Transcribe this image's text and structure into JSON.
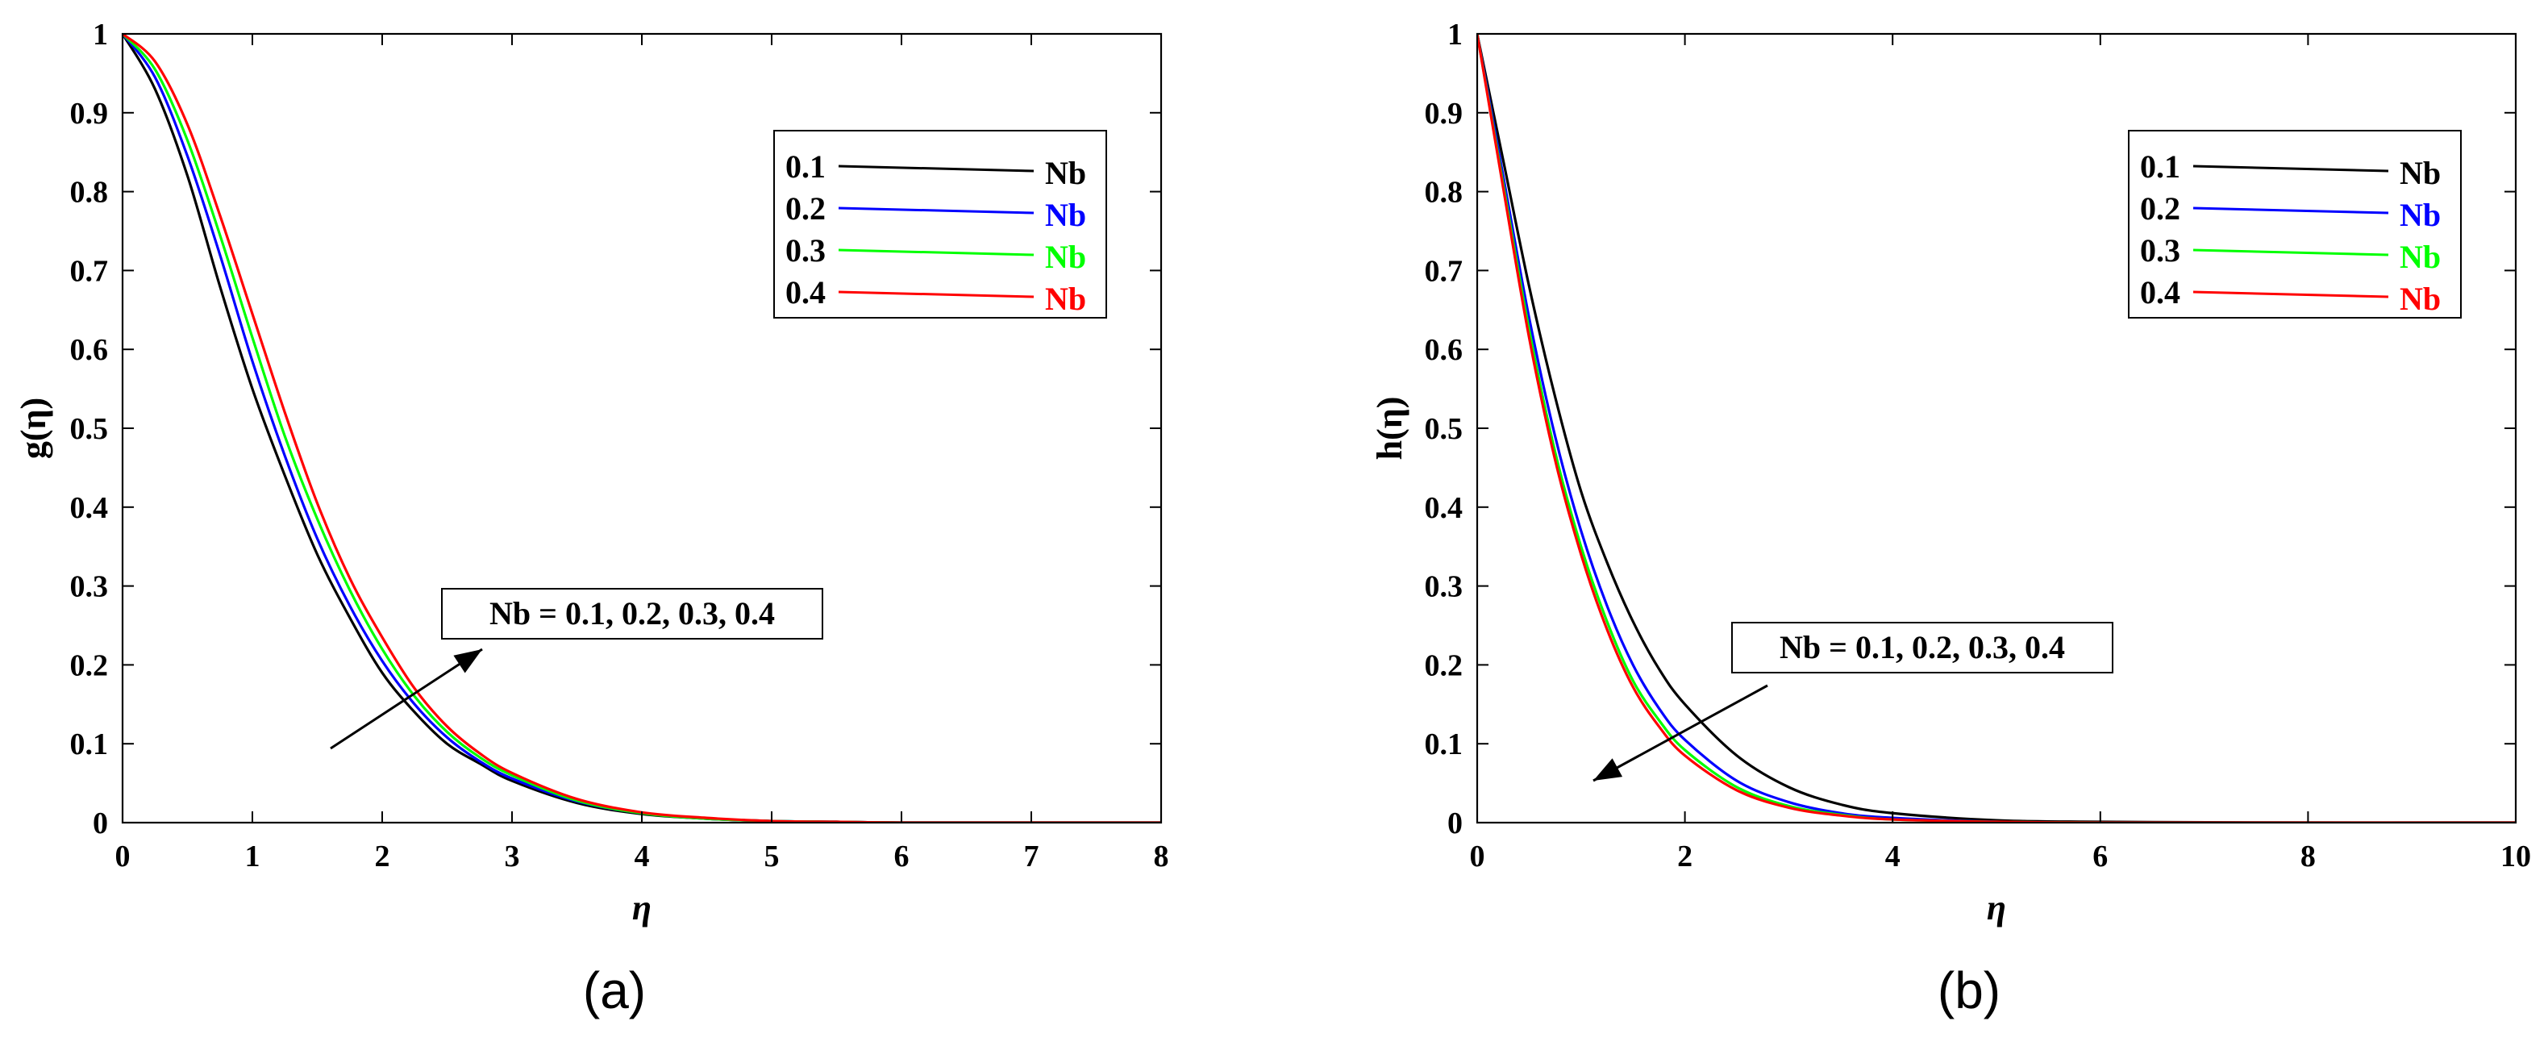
{
  "chart_data": [
    {
      "type": "line",
      "panel_label": "(a)",
      "xlabel": "η",
      "ylabel": "g(η)",
      "xlim": [
        0,
        8
      ],
      "ylim": [
        0,
        1
      ],
      "xticks": [
        "0",
        "1",
        "2",
        "3",
        "4",
        "5",
        "6",
        "7",
        "8"
      ],
      "yticks": [
        "0",
        "0.1",
        "0.2",
        "0.3",
        "0.4",
        "0.5",
        "0.6",
        "0.7",
        "0.8",
        "0.9",
        "1"
      ],
      "legend_position": "top-right",
      "annotation": "Nb = 0.1, 0.2, 0.3, 0.4",
      "annotation_arrow": "increasing",
      "x": [
        0,
        0.25,
        0.5,
        0.75,
        1,
        1.25,
        1.5,
        1.75,
        2,
        2.25,
        2.5,
        2.75,
        3,
        3.5,
        4,
        4.5,
        5,
        5.5,
        6,
        7,
        8
      ],
      "series": [
        {
          "name": "0.1",
          "legend_value": "0.1",
          "legend_label": "Nb",
          "color": "#000000",
          "values": [
            1,
            0.93,
            0.82,
            0.68,
            0.55,
            0.44,
            0.34,
            0.26,
            0.19,
            0.14,
            0.1,
            0.075,
            0.053,
            0.025,
            0.011,
            0.005,
            0.002,
            0.001,
            0,
            0,
            0
          ]
        },
        {
          "name": "0.2",
          "legend_value": "0.2",
          "legend_label": "Nb",
          "color": "#0000ff",
          "values": [
            1,
            0.945,
            0.845,
            0.72,
            0.585,
            0.465,
            0.36,
            0.275,
            0.205,
            0.15,
            0.108,
            0.078,
            0.056,
            0.027,
            0.012,
            0.005,
            0.002,
            0.001,
            0,
            0,
            0
          ]
        },
        {
          "name": "0.3",
          "legend_value": "0.3",
          "legend_label": "Nb",
          "color": "#00ff00",
          "values": [
            1,
            0.955,
            0.865,
            0.745,
            0.615,
            0.49,
            0.385,
            0.295,
            0.22,
            0.16,
            0.115,
            0.083,
            0.06,
            0.028,
            0.012,
            0.005,
            0.002,
            0.001,
            0,
            0,
            0
          ]
        },
        {
          "name": "0.4",
          "legend_value": "0.4",
          "legend_label": "Nb",
          "color": "#ff0000",
          "values": [
            1,
            0.965,
            0.885,
            0.77,
            0.645,
            0.52,
            0.405,
            0.31,
            0.235,
            0.17,
            0.122,
            0.088,
            0.063,
            0.03,
            0.013,
            0.006,
            0.002,
            0.001,
            0,
            0,
            0
          ]
        }
      ]
    },
    {
      "type": "line",
      "panel_label": "(b)",
      "xlabel": "η",
      "ylabel": "h(η)",
      "xlim": [
        0,
        10
      ],
      "ylim": [
        0,
        1
      ],
      "xticks": [
        "0",
        "2",
        "4",
        "6",
        "8",
        "10"
      ],
      "yticks": [
        "0",
        "0.1",
        "0.2",
        "0.3",
        "0.4",
        "0.5",
        "0.6",
        "0.7",
        "0.8",
        "0.9",
        "1"
      ],
      "legend_position": "top-right",
      "annotation": "Nb = 0.1, 0.2, 0.3, 0.4",
      "annotation_arrow": "decreasing",
      "x": [
        0,
        0.25,
        0.5,
        0.75,
        1,
        1.25,
        1.5,
        1.75,
        2,
        2.5,
        3,
        3.5,
        4,
        5,
        6,
        8,
        10
      ],
      "series": [
        {
          "name": "0.1",
          "legend_value": "0.1",
          "legend_label": "Nb",
          "color": "#000000",
          "values": [
            1,
            0.84,
            0.68,
            0.54,
            0.42,
            0.33,
            0.255,
            0.195,
            0.15,
            0.085,
            0.045,
            0.023,
            0.012,
            0.003,
            0.001,
            0,
            0
          ]
        },
        {
          "name": "0.2",
          "legend_value": "0.2",
          "legend_label": "Nb",
          "color": "#0000ff",
          "values": [
            1,
            0.82,
            0.64,
            0.49,
            0.37,
            0.275,
            0.2,
            0.145,
            0.105,
            0.053,
            0.026,
            0.012,
            0.006,
            0.001,
            0,
            0,
            0
          ]
        },
        {
          "name": "0.3",
          "legend_value": "0.3",
          "legend_label": "Nb",
          "color": "#00ff00",
          "values": [
            1,
            0.81,
            0.625,
            0.47,
            0.35,
            0.255,
            0.18,
            0.13,
            0.092,
            0.045,
            0.021,
            0.01,
            0.004,
            0.001,
            0,
            0,
            0
          ]
        },
        {
          "name": "0.4",
          "legend_value": "0.4",
          "legend_label": "Nb",
          "color": "#ff0000",
          "values": [
            1,
            0.805,
            0.615,
            0.46,
            0.34,
            0.245,
            0.172,
            0.122,
            0.085,
            0.041,
            0.019,
            0.009,
            0.004,
            0.001,
            0,
            0,
            0
          ]
        }
      ]
    }
  ]
}
